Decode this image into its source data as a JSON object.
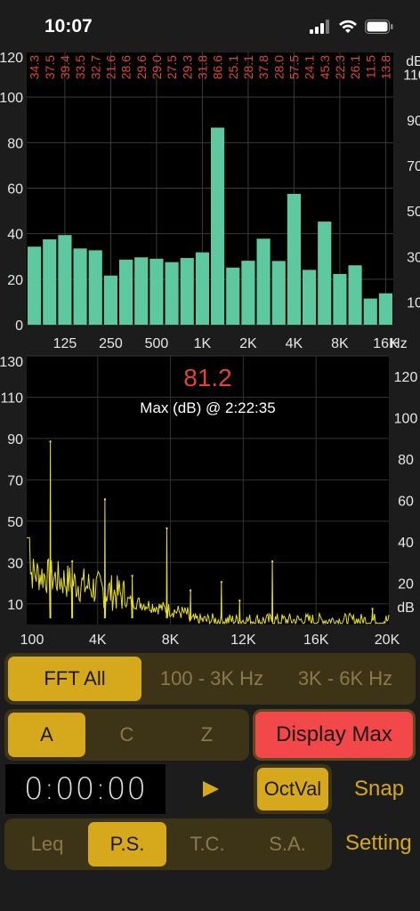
{
  "status_bar": {
    "time": "10:07"
  },
  "octave_chart": {
    "type": "bar",
    "values": [
      34.3,
      37.5,
      39.4,
      33.5,
      32.7,
      21.6,
      28.6,
      29.6,
      29.0,
      27.5,
      29.3,
      31.8,
      86.6,
      25.1,
      28.1,
      37.8,
      28.0,
      57.5,
      24.1,
      45.3,
      22.3,
      26.1,
      11.5,
      13.8
    ],
    "value_labels": [
      "34.3",
      "37.5",
      "39.4",
      "33.5",
      "32.7",
      "21.6",
      "28.6",
      "29.6",
      "29.0",
      "27.5",
      "29.3",
      "31.8",
      "86.6",
      "25.1",
      "28.1",
      "37.8",
      "28.0",
      "57.5",
      "24.1",
      "45.3",
      "22.3",
      "26.1",
      "11.5",
      "13.8"
    ],
    "ylim": [
      0,
      120
    ],
    "left_ticks": [
      "120",
      "100",
      "80",
      "60",
      "40",
      "20",
      "0"
    ],
    "right_ticks": [
      "110",
      "90",
      "70",
      "50",
      "30",
      "10"
    ],
    "right_unit": "dB",
    "x_ticks": [
      "125",
      "250",
      "500",
      "1K",
      "2K",
      "4K",
      "8K",
      "16K"
    ],
    "x_unit": "Hz",
    "bar_color": "#5ec8a0",
    "label_color": "#e0453a"
  },
  "fft_chart": {
    "type": "line",
    "current_value": "81.2",
    "subtitle": "Max (dB) @ 2:22:35",
    "ylim": [
      0,
      130
    ],
    "xlim": [
      100,
      20000
    ],
    "left_ticks": [
      "130",
      "110",
      "90",
      "70",
      "50",
      "30",
      "10"
    ],
    "right_ticks": [
      "120",
      "100",
      "80",
      "60",
      "40",
      "20"
    ],
    "right_unit": "dB",
    "x_ticks": [
      "100",
      "4K",
      "8K",
      "12K",
      "16K",
      "20K"
    ],
    "peaks": [
      {
        "x": 1400,
        "y": 89
      },
      {
        "x": 2600,
        "y": 31
      },
      {
        "x": 4400,
        "y": 61
      },
      {
        "x": 5900,
        "y": 24
      },
      {
        "x": 7800,
        "y": 47
      },
      {
        "x": 9100,
        "y": 17
      },
      {
        "x": 10800,
        "y": 21
      },
      {
        "x": 11800,
        "y": 12
      },
      {
        "x": 13600,
        "y": 31
      },
      {
        "x": 19100,
        "y": 8
      }
    ],
    "line_color": "#e8e020"
  },
  "mode_selector": {
    "options": [
      "FFT All",
      "100 - 3K Hz",
      "3K - 6K Hz"
    ],
    "selected": 0
  },
  "weighting_selector": {
    "options": [
      "A",
      "C",
      "Z"
    ],
    "selected": 0
  },
  "display_max_label": "Display Max",
  "timer": "0:00:00",
  "play_icon": "play-icon",
  "octval_label": "OctVal",
  "snap_label": "Snap",
  "analysis_selector": {
    "options": [
      "Leq",
      "P.S.",
      "T.C.",
      "S.A."
    ],
    "selected": 1
  },
  "setting_label": "Setting"
}
